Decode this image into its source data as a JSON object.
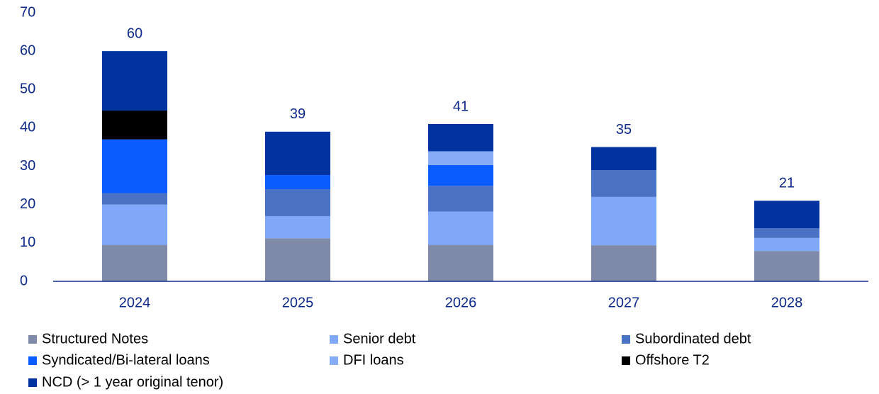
{
  "chart_data": {
    "type": "stacked_bar",
    "categories": [
      "2024",
      "2025",
      "2026",
      "2027",
      "2028"
    ],
    "series": [
      {
        "name": "Structured Notes",
        "color": "#7f8aa8",
        "values": [
          9.5,
          11.2,
          9.5,
          9.4,
          7.9
        ]
      },
      {
        "name": "Senior debt",
        "color": "#80a8fa",
        "values": [
          10.5,
          5.8,
          8.7,
          12.6,
          3.4
        ]
      },
      {
        "name": "Subordinated debt",
        "color": "#4a72c4",
        "values": [
          3,
          7,
          6.7,
          7,
          2.5
        ]
      },
      {
        "name": "Syndicated/Bi-lateral loans",
        "color": "#0a5cff",
        "values": [
          14,
          3.7,
          5.4,
          null,
          null
        ]
      },
      {
        "name": "DFI loans",
        "color": "#86abf7",
        "values": [
          null,
          null,
          3.6,
          null,
          null
        ]
      },
      {
        "name": "Offshore T2",
        "color": "#000000",
        "values": [
          7.5,
          null,
          null,
          null,
          null
        ]
      },
      {
        "name": "NCD (> 1 year original tenor)",
        "color": "#0033a0",
        "values": [
          15.5,
          11.3,
          7.1,
          6,
          7.2
        ]
      }
    ],
    "totals": [
      60,
      39,
      41,
      35,
      21
    ],
    "ylim": [
      0,
      70
    ],
    "yticks": [
      0,
      10,
      20,
      30,
      40,
      50,
      60,
      70
    ],
    "grid": false
  }
}
